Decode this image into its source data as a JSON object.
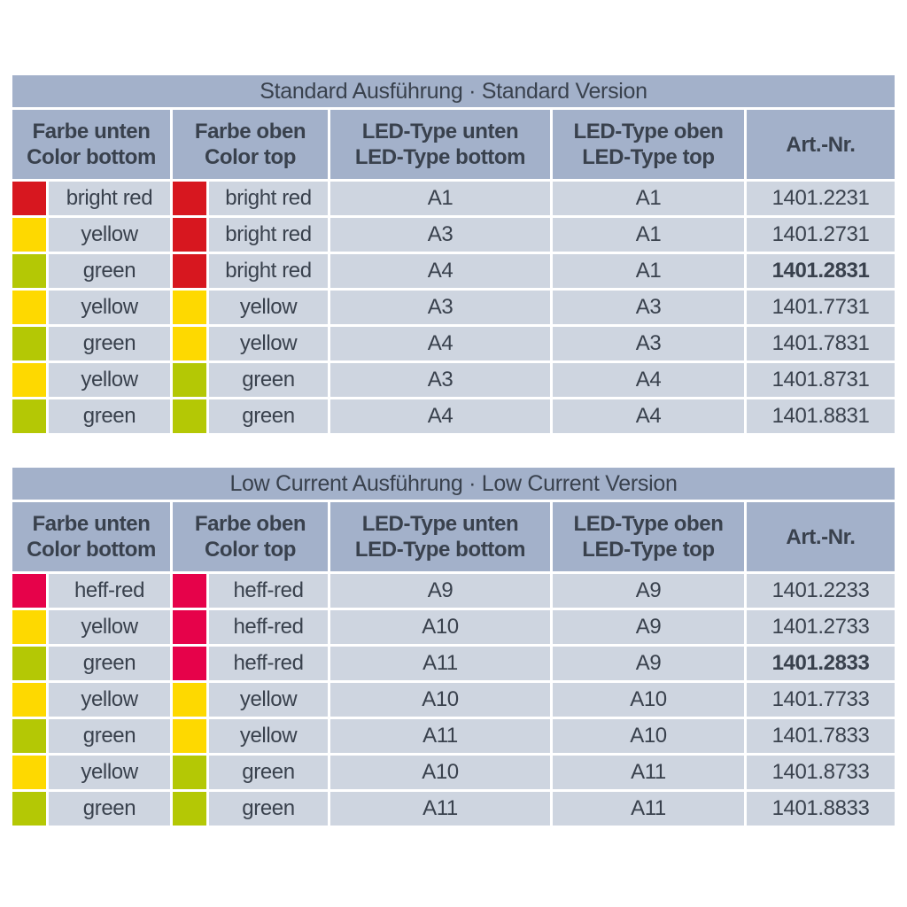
{
  "colors": {
    "band": "#a3b1ca",
    "cell": "#ced5e0",
    "text": "#39414d",
    "swatch": {
      "red": "#d7171f",
      "pink": "#e6024a",
      "yellow": "#fed900",
      "green": "#b4c805"
    }
  },
  "columns": [
    {
      "line1": "Farbe unten",
      "line2": "Color bottom"
    },
    {
      "line1": "Farbe oben",
      "line2": "Color top"
    },
    {
      "line1": "LED-Type unten",
      "line2": "LED-Type bottom"
    },
    {
      "line1": "LED-Type oben",
      "line2": "LED-Type top"
    },
    {
      "line1": "Art.-Nr.",
      "line2": ""
    }
  ],
  "tables": [
    {
      "title": "Standard Ausführung · Standard Version",
      "rows": [
        {
          "cb": "bright red",
          "cbs": "red",
          "ct": "bright red",
          "cts": "red",
          "lb": "A1",
          "lt": "A1",
          "art": "1401.2231",
          "bold": false
        },
        {
          "cb": "yellow",
          "cbs": "yellow",
          "ct": "bright red",
          "cts": "red",
          "lb": "A3",
          "lt": "A1",
          "art": "1401.2731",
          "bold": false
        },
        {
          "cb": "green",
          "cbs": "green",
          "ct": "bright red",
          "cts": "red",
          "lb": "A4",
          "lt": "A1",
          "art": "1401.2831",
          "bold": true
        },
        {
          "cb": "yellow",
          "cbs": "yellow",
          "ct": "yellow",
          "cts": "yellow",
          "lb": "A3",
          "lt": "A3",
          "art": "1401.7731",
          "bold": false
        },
        {
          "cb": "green",
          "cbs": "green",
          "ct": "yellow",
          "cts": "yellow",
          "lb": "A4",
          "lt": "A3",
          "art": "1401.7831",
          "bold": false
        },
        {
          "cb": "yellow",
          "cbs": "yellow",
          "ct": "green",
          "cts": "green",
          "lb": "A3",
          "lt": "A4",
          "art": "1401.8731",
          "bold": false
        },
        {
          "cb": "green",
          "cbs": "green",
          "ct": "green",
          "cts": "green",
          "lb": "A4",
          "lt": "A4",
          "art": "1401.8831",
          "bold": false
        }
      ]
    },
    {
      "title": "Low Current Ausführung · Low Current Version",
      "rows": [
        {
          "cb": "heff-red",
          "cbs": "pink",
          "ct": "heff-red",
          "cts": "pink",
          "lb": "A9",
          "lt": "A9",
          "art": "1401.2233",
          "bold": false
        },
        {
          "cb": "yellow",
          "cbs": "yellow",
          "ct": "heff-red",
          "cts": "pink",
          "lb": "A10",
          "lt": "A9",
          "art": "1401.2733",
          "bold": false
        },
        {
          "cb": "green",
          "cbs": "green",
          "ct": "heff-red",
          "cts": "pink",
          "lb": "A11",
          "lt": "A9",
          "art": "1401.2833",
          "bold": true
        },
        {
          "cb": "yellow",
          "cbs": "yellow",
          "ct": "yellow",
          "cts": "yellow",
          "lb": "A10",
          "lt": "A10",
          "art": "1401.7733",
          "bold": false
        },
        {
          "cb": "green",
          "cbs": "green",
          "ct": "yellow",
          "cts": "yellow",
          "lb": "A11",
          "lt": "A10",
          "art": "1401.7833",
          "bold": false
        },
        {
          "cb": "yellow",
          "cbs": "yellow",
          "ct": "green",
          "cts": "green",
          "lb": "A10",
          "lt": "A11",
          "art": "1401.8733",
          "bold": false
        },
        {
          "cb": "green",
          "cbs": "green",
          "ct": "green",
          "cts": "green",
          "lb": "A11",
          "lt": "A11",
          "art": "1401.8833",
          "bold": false
        }
      ]
    }
  ]
}
